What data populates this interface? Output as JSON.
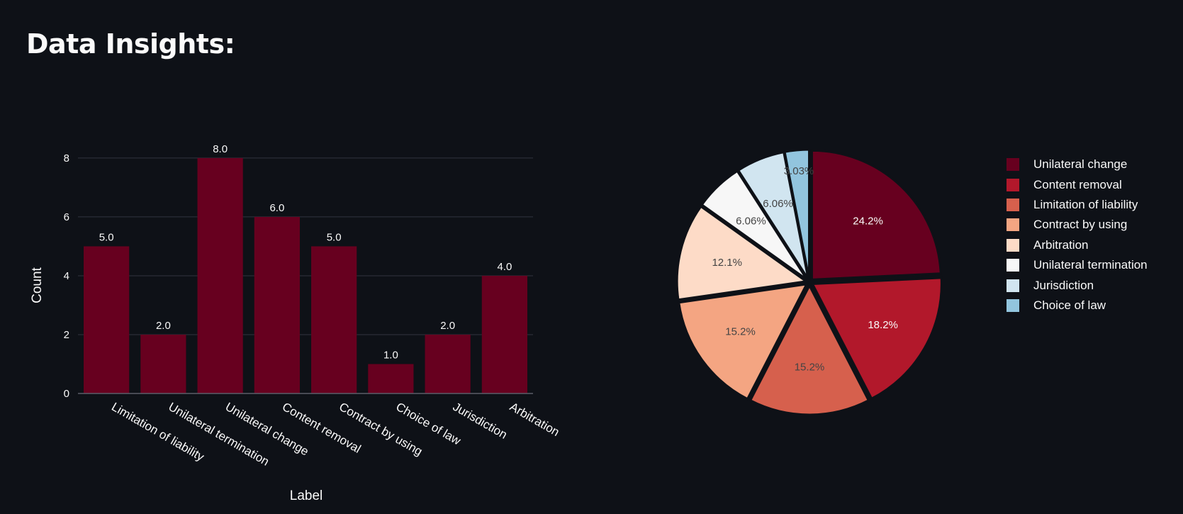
{
  "page": {
    "title": "Data Insights:"
  },
  "chart_data": [
    {
      "type": "bar",
      "categories": [
        "Limitation of liability",
        "Unilateral termination",
        "Unilateral change",
        "Content removal",
        "Contract by using",
        "Choice of law",
        "Jurisdiction",
        "Arbitration"
      ],
      "values": [
        5,
        2,
        8,
        6,
        5,
        1,
        2,
        4
      ],
      "data_labels": [
        "5.0",
        "2.0",
        "8.0",
        "6.0",
        "5.0",
        "1.0",
        "2.0",
        "4.0"
      ],
      "xlabel": "Label",
      "ylabel": "Count",
      "ylim": [
        0,
        8.6
      ],
      "yticks": [
        0,
        2,
        4,
        6,
        8
      ],
      "grid": true,
      "bar_color": "#67001f",
      "axis_text_color": "#fafafa",
      "grid_color": "#31333f"
    },
    {
      "type": "pie",
      "labels": [
        "Unilateral change",
        "Content removal",
        "Limitation of liability",
        "Contract by using",
        "Arbitration",
        "Unilateral termination",
        "Jurisdiction",
        "Choice of law"
      ],
      "values": [
        8,
        6,
        5,
        5,
        4,
        2,
        2,
        1
      ],
      "percent_labels": [
        "24.2%",
        "18.2%",
        "15.2%",
        "15.2%",
        "12.1%",
        "6.06%",
        "6.06%",
        "3.03%"
      ],
      "colors": [
        "#67001f",
        "#b2182b",
        "#d6604d",
        "#f4a582",
        "#fddbc7",
        "#f7f7f7",
        "#d1e5f0",
        "#92c5de"
      ],
      "label_colors": [
        "#fafafa",
        "#fafafa",
        "#444444",
        "#444444",
        "#444444",
        "#444444",
        "#444444",
        "#444444"
      ],
      "legend_position": "right",
      "pull": true
    }
  ]
}
